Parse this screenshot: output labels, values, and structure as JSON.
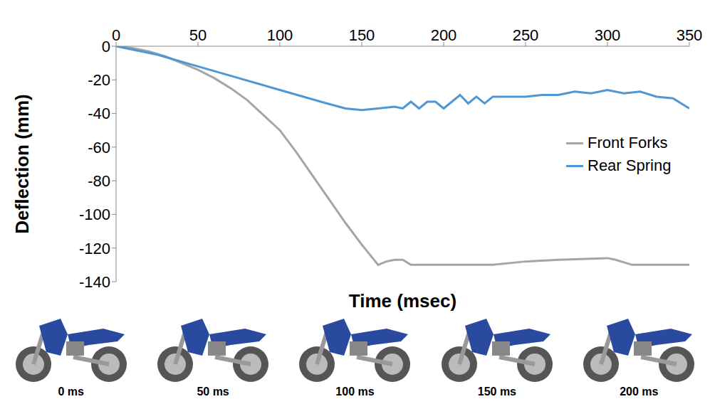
{
  "chart_data": {
    "type": "line",
    "x_label": "Time (msec)",
    "y_label": "Deflection (mm)",
    "xlim": [
      0,
      350
    ],
    "xticks": [
      0,
      50,
      100,
      150,
      200,
      250,
      300,
      350
    ],
    "ylim": [
      -140,
      0
    ],
    "yticks": [
      -140,
      -120,
      -100,
      -80,
      -60,
      -40,
      -20,
      0
    ],
    "grid": false,
    "legend": "right",
    "series": [
      {
        "name": "Front Forks",
        "color": "#a6a6a6",
        "x": [
          0,
          10,
          20,
          30,
          40,
          50,
          60,
          70,
          80,
          90,
          100,
          110,
          120,
          130,
          140,
          150,
          160,
          165,
          170,
          175,
          180,
          200,
          230,
          250,
          270,
          300,
          305,
          315,
          350
        ],
        "values": [
          0,
          -1,
          -3,
          -6,
          -10,
          -14,
          -19,
          -25,
          -32,
          -41,
          -50,
          -63,
          -77,
          -91,
          -105,
          -118,
          -130,
          -128,
          -127,
          -127,
          -130,
          -130,
          -130,
          -128,
          -127,
          -126,
          -127,
          -130,
          -130
        ]
      },
      {
        "name": "Rear Spring",
        "color": "#4f96d4",
        "x": [
          0,
          25,
          50,
          75,
          100,
          125,
          140,
          150,
          160,
          170,
          175,
          180,
          185,
          190,
          195,
          200,
          205,
          210,
          215,
          220,
          225,
          230,
          240,
          250,
          260,
          270,
          280,
          290,
          300,
          310,
          320,
          330,
          340,
          350
        ],
        "values": [
          0,
          -5,
          -12,
          -19,
          -26,
          -33,
          -37,
          -38,
          -37,
          -36,
          -37,
          -33,
          -37,
          -33,
          -33,
          -37,
          -33,
          -29,
          -34,
          -30,
          -34,
          -30,
          -30,
          -30,
          -29,
          -29,
          -27,
          -28,
          -26,
          -28,
          -27,
          -30,
          -31,
          -37
        ]
      }
    ],
    "annotations": [
      "0 ms",
      "50 ms",
      "100 ms",
      "150 ms",
      "200 ms"
    ]
  }
}
